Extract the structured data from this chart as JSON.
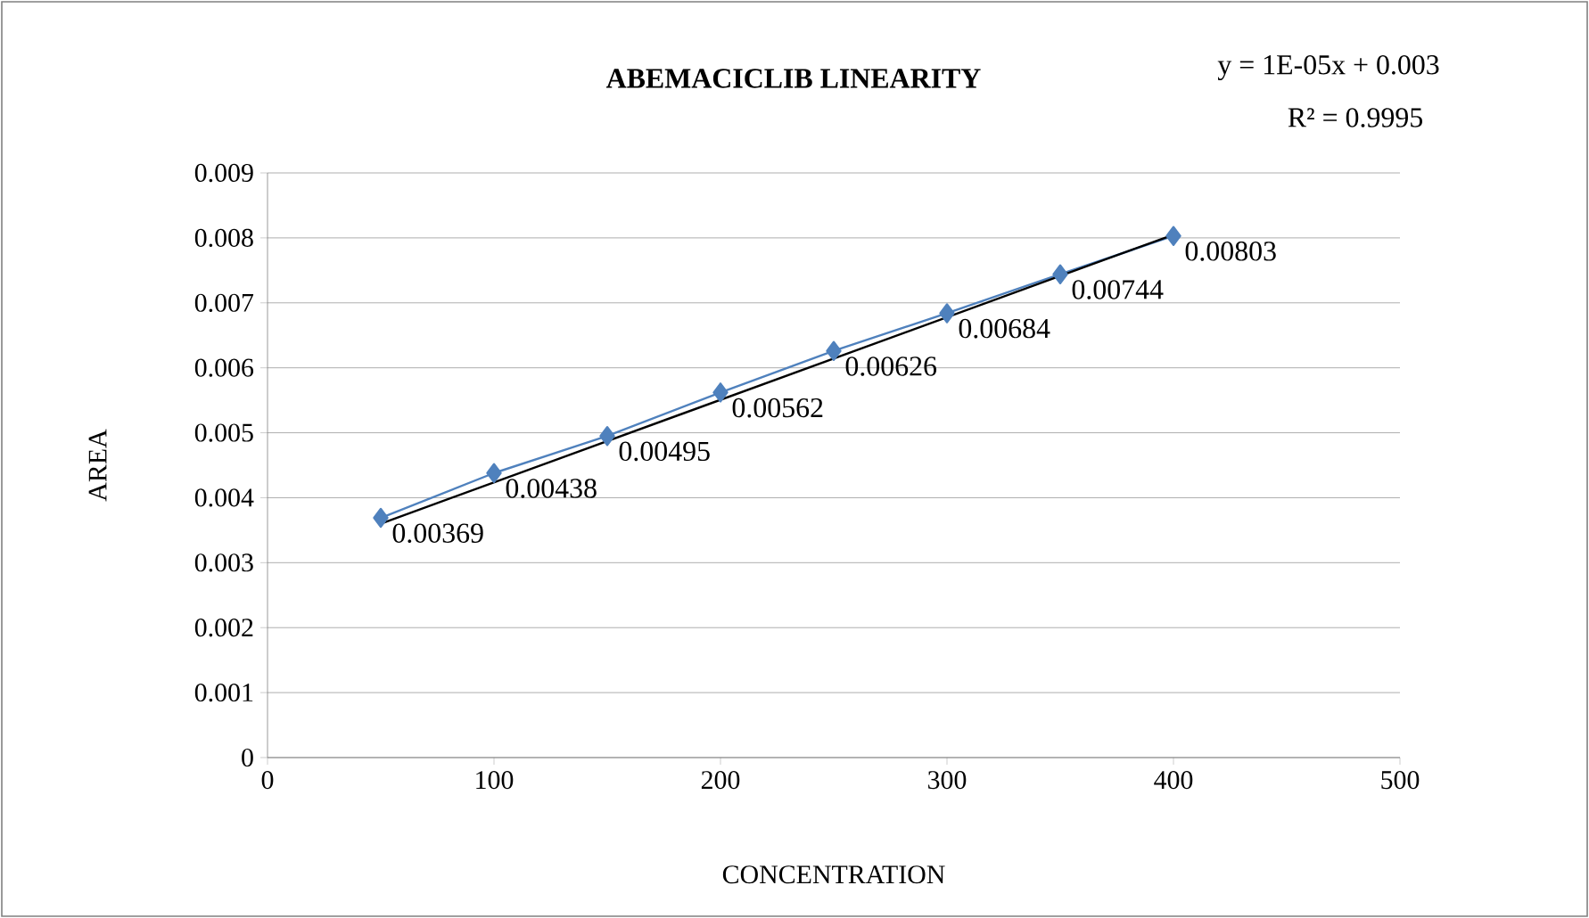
{
  "chart_data": {
    "type": "line",
    "title": "ABEMACICLIB  LINEARITY",
    "xlabel": "CONCENTRATION",
    "ylabel": "AREA",
    "annotations": [
      "y = 1E-05x + 0.003",
      "R² = 0.9995"
    ],
    "xlim": [
      0,
      500
    ],
    "xticks": [
      0,
      100,
      200,
      300,
      400,
      500
    ],
    "ylim": [
      0,
      0.009
    ],
    "yticks": [
      0,
      0.001,
      0.002,
      0.003,
      0.004,
      0.005,
      0.006,
      0.007,
      0.008,
      0.009
    ],
    "grid": "y",
    "series": [
      {
        "color": "#4f81bd",
        "marker": "diamond",
        "x": [
          50,
          100,
          150,
          200,
          250,
          300,
          350,
          400
        ],
        "values": [
          0.00369,
          0.00438,
          0.00495,
          0.00562,
          0.00626,
          0.00684,
          0.00744,
          0.00803
        ],
        "value_labels": [
          "0.00369",
          "0.00438",
          "0.00495",
          "0.00562",
          "0.00626",
          "0.00684",
          "0.00744",
          "0.00803"
        ]
      },
      {
        "color": "#000000",
        "marker": "none",
        "x": [
          50,
          400
        ],
        "values": [
          0.0036,
          0.00805
        ]
      }
    ]
  }
}
